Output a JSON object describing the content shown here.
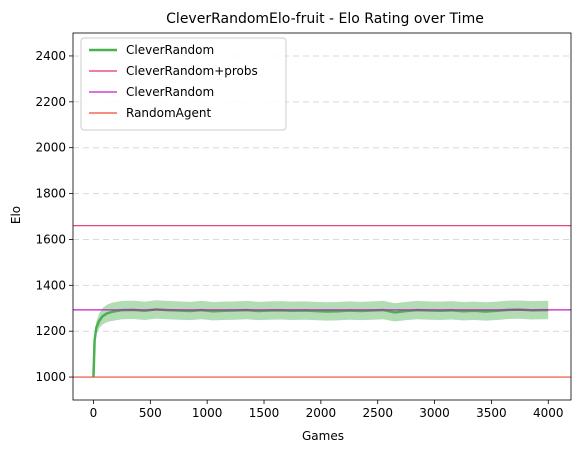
{
  "chart_data": {
    "type": "line",
    "title": "CleverRandomElo-fruit - Elo Rating over Time",
    "xlabel": "Games",
    "ylabel": "Elo",
    "xlim": [
      -180,
      4200
    ],
    "ylim": [
      900,
      2500
    ],
    "xticks": [
      0,
      500,
      1000,
      1500,
      2000,
      2500,
      3000,
      3500,
      4000
    ],
    "yticks": [
      1000,
      1200,
      1400,
      1600,
      1800,
      2000,
      2200,
      2400
    ],
    "grid": "horizontal dashed",
    "legend_position": "top-left",
    "series": [
      {
        "name": "CleverRandom",
        "kind": "line-with-band",
        "color": "#4caf50",
        "band_color": "#a5d6a7",
        "x": [
          0,
          10,
          25,
          50,
          80,
          120,
          170,
          250,
          350,
          450,
          550,
          650,
          750,
          850,
          950,
          1050,
          1150,
          1250,
          1350,
          1450,
          1550,
          1650,
          1750,
          1850,
          1950,
          2050,
          2150,
          2250,
          2350,
          2450,
          2550,
          2650,
          2750,
          2850,
          2950,
          3050,
          3150,
          3250,
          3350,
          3450,
          3550,
          3650,
          3750,
          3850,
          3950,
          4000
        ],
        "values": [
          1000,
          1160,
          1215,
          1245,
          1265,
          1278,
          1285,
          1292,
          1293,
          1289,
          1295,
          1292,
          1290,
          1288,
          1292,
          1287,
          1289,
          1290,
          1292,
          1288,
          1290,
          1291,
          1289,
          1290,
          1288,
          1286,
          1287,
          1290,
          1288,
          1290,
          1292,
          1282,
          1288,
          1292,
          1290,
          1289,
          1291,
          1287,
          1289,
          1286,
          1289,
          1293,
          1294,
          1291,
          1292,
          1292
        ],
        "band": [
          0,
          20,
          28,
          32,
          36,
          38,
          40,
          40,
          40,
          40,
          40,
          40,
          40,
          40,
          40,
          40,
          40,
          40,
          40,
          40,
          40,
          40,
          40,
          40,
          40,
          40,
          40,
          40,
          40,
          40,
          40,
          40,
          40,
          40,
          40,
          40,
          40,
          40,
          40,
          40,
          40,
          40,
          40,
          40,
          40,
          40
        ]
      },
      {
        "name": "CleverRandom+probs",
        "kind": "hline",
        "value": 1660,
        "color": "#e0306f"
      },
      {
        "name": "CleverRandom",
        "kind": "hline",
        "value": 1293,
        "color": "#c41ec4"
      },
      {
        "name": "RandomAgent",
        "kind": "hline",
        "value": 1000,
        "color": "#ef4a36"
      }
    ]
  }
}
